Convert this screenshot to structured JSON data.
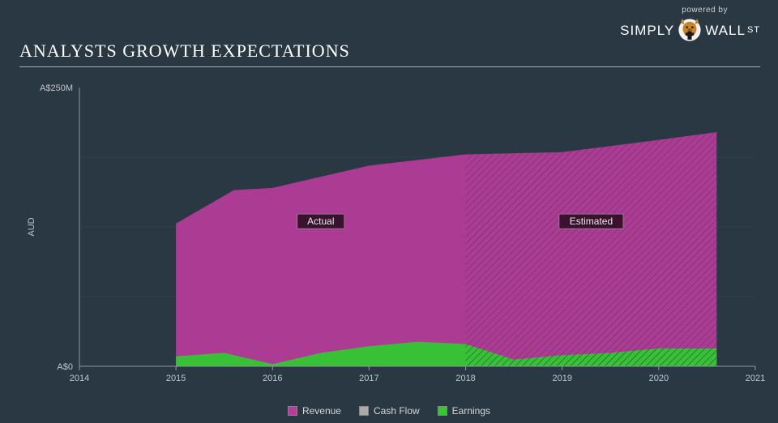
{
  "branding": {
    "powered_by": "powered by",
    "word1": "SIMPLY",
    "word2": "WALL",
    "word3": "ST"
  },
  "title": "ANALYSTS GROWTH EXPECTATIONS",
  "chart": {
    "type": "area",
    "background_color": "#2a3844",
    "plot_border_color": "#8f979e",
    "grid_color": "#4a5560",
    "y_axis": {
      "label": "AUD",
      "min": 0,
      "max": 250,
      "ticks": [
        {
          "v": 0,
          "label": "A$0"
        },
        {
          "v": 250,
          "label": "A$250M"
        }
      ],
      "minor_ticks": [
        62.5,
        125,
        187.5
      ],
      "label_fontsize": 11,
      "label_color": "#bfc6cc"
    },
    "x_axis": {
      "min": 2014,
      "max": 2021,
      "ticks": [
        2014,
        2015,
        2016,
        2017,
        2018,
        2019,
        2020,
        2021
      ],
      "label_fontsize": 11,
      "label_color": "#bfc6cc"
    },
    "split_year": 2018,
    "region_labels": {
      "actual": {
        "text": "Actual",
        "x_year": 2016.5,
        "y_value": 130,
        "bg": "#3a1230",
        "text_color": "#e8e8e8"
      },
      "estimated": {
        "text": "Estimated",
        "x_year": 2019.3,
        "y_value": 130,
        "bg": "#3a1230",
        "text_color": "#e8e8e8"
      }
    },
    "series": {
      "revenue": {
        "name": "Revenue",
        "color": "#b73c9a",
        "fill_opacity": 0.92,
        "points": [
          {
            "x": 2015.0,
            "y": 128
          },
          {
            "x": 2015.6,
            "y": 158
          },
          {
            "x": 2016.0,
            "y": 160
          },
          {
            "x": 2017.0,
            "y": 180
          },
          {
            "x": 2017.5,
            "y": 185
          },
          {
            "x": 2018.0,
            "y": 190
          },
          {
            "x": 2019.0,
            "y": 192
          },
          {
            "x": 2020.0,
            "y": 203
          },
          {
            "x": 2020.6,
            "y": 210
          }
        ]
      },
      "cash_flow": {
        "name": "Cash Flow",
        "color": "#aaaaaa",
        "fill_opacity": 0.0,
        "points": []
      },
      "earnings": {
        "name": "Earnings",
        "color": "#31c831",
        "fill_opacity": 0.95,
        "points": [
          {
            "x": 2015.0,
            "y": 9
          },
          {
            "x": 2015.5,
            "y": 12
          },
          {
            "x": 2016.0,
            "y": 2
          },
          {
            "x": 2016.5,
            "y": 12
          },
          {
            "x": 2017.0,
            "y": 18
          },
          {
            "x": 2017.5,
            "y": 22
          },
          {
            "x": 2018.0,
            "y": 20
          },
          {
            "x": 2018.5,
            "y": 6
          },
          {
            "x": 2019.0,
            "y": 10
          },
          {
            "x": 2019.5,
            "y": 12
          },
          {
            "x": 2020.0,
            "y": 16
          },
          {
            "x": 2020.6,
            "y": 16
          }
        ]
      }
    },
    "hatch": {
      "stroke": "#1e2a33",
      "stroke_width": 1,
      "spacing": 6
    },
    "legend": [
      {
        "key": "revenue",
        "label": "Revenue",
        "swatch": "#b73c9a"
      },
      {
        "key": "cash_flow",
        "label": "Cash Flow",
        "swatch": "#aaaaaa"
      },
      {
        "key": "earnings",
        "label": "Earnings",
        "swatch": "#31c831"
      }
    ]
  }
}
